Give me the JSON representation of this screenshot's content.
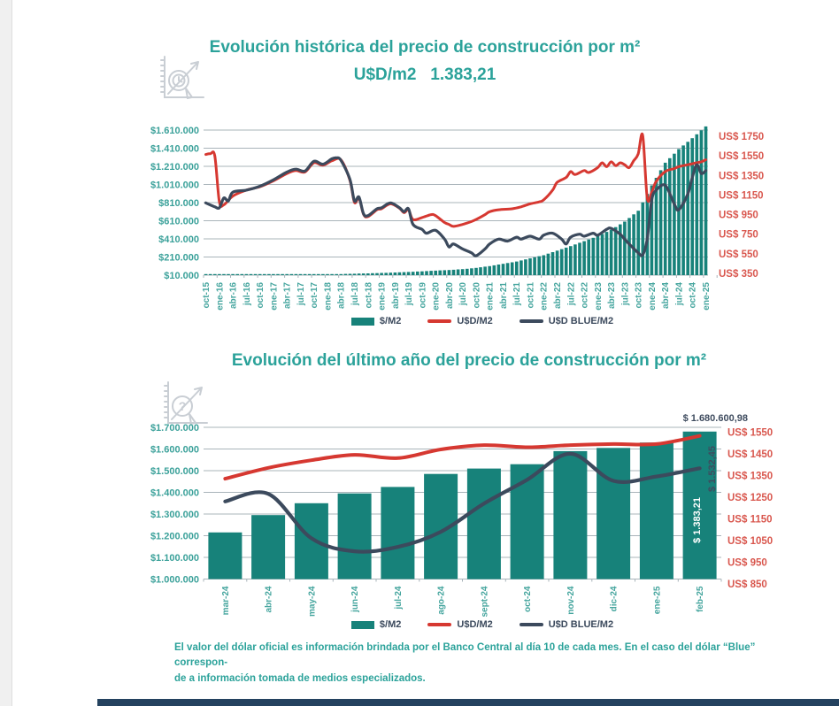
{
  "colors": {
    "bar_teal": "#17827a",
    "title_teal": "#2ba29a",
    "axis_teal": "#3ba19a",
    "tick_teal": "#45a59e",
    "red_line": "#d63831",
    "red_axis_text": "#d9574e",
    "navy_line": "#3c4a5d",
    "grid": "#a9b4ba",
    "annotation_navy": "#3f4c5f",
    "annotation_white": "#ffffff",
    "bottom_bar": "#24425f"
  },
  "footnote": {
    "line1": "El valor del dólar oficial es información brindada por el Banco Central al día 10 de cada mes. En el caso del dólar “Blue” correspon-",
    "line2": "de a información tomada de medios especializados."
  },
  "chart_data": [
    {
      "type": "bar+line",
      "title": "Evolución histórica del precio de construcción por m²",
      "subtitle": "U$D/m2   1.383,21",
      "legend": [
        "$/M2",
        "U$D/M2",
        "U$D BLUE/M2"
      ],
      "x_tick_labels": [
        "oct-15",
        "ene-16",
        "abr-16",
        "jul-16",
        "oct-16",
        "ene-17",
        "abr-17",
        "jul-17",
        "oct-17",
        "ene-18",
        "abr-18",
        "jul-18",
        "oct-18",
        "ene-19",
        "abr-19",
        "jul-19",
        "oct-19",
        "ene-20",
        "abr-20",
        "jul-20",
        "oct-20",
        "ene-21",
        "abr-21",
        "jul-21",
        "oct-21",
        "ene-22",
        "abr-22",
        "jul-22",
        "oct-22",
        "ene-23",
        "abr-23",
        "jul-23",
        "oct-23",
        "ene-24",
        "abr-24",
        "jul-24",
        "oct-24",
        "ene-25"
      ],
      "months_total": 112,
      "left_axis": {
        "labels": [
          "$1.610.000",
          "$1.410.000",
          "$1.210.000",
          "$1.010.000",
          "$810.000",
          "$610.000",
          "$410.000",
          "$210.000",
          "$10.000"
        ],
        "min": 10000,
        "max": 1610000
      },
      "right_axis": {
        "labels": [
          "US$ 1750",
          "US$ 1550",
          "US$ 1350",
          "US$ 1150",
          "US$ 950",
          "US$ 750",
          "US$ 550",
          "US$ 350"
        ],
        "values": [
          1750,
          1550,
          1350,
          1150,
          950,
          750,
          550,
          350
        ],
        "plot_top_value": 1814,
        "plot_bottom_value": 332
      },
      "series": {
        "bars": {
          "name": "$/M2",
          "quarterly_anchors": [
            [
              0,
              9000
            ],
            [
              3,
              10000
            ],
            [
              6,
              11000
            ],
            [
              9,
              12000
            ],
            [
              12,
              13000
            ],
            [
              15,
              14500
            ],
            [
              18,
              15500
            ],
            [
              21,
              17000
            ],
            [
              24,
              18500
            ],
            [
              27,
              20000
            ],
            [
              30,
              22000
            ],
            [
              33,
              26000
            ],
            [
              36,
              30000
            ],
            [
              39,
              34000
            ],
            [
              42,
              39000
            ],
            [
              45,
              45000
            ],
            [
              48,
              52000
            ],
            [
              51,
              60000
            ],
            [
              54,
              67000
            ],
            [
              57,
              76000
            ],
            [
              60,
              90000
            ],
            [
              63,
              110000
            ],
            [
              66,
              135000
            ],
            [
              69,
              160000
            ],
            [
              72,
              195000
            ],
            [
              75,
              230000
            ],
            [
              78,
              280000
            ],
            [
              81,
              330000
            ],
            [
              84,
              385000
            ],
            [
              87,
              440000
            ],
            [
              90,
              510000
            ],
            [
              93,
              600000
            ],
            [
              96,
              720000
            ],
            [
              99,
              1000000
            ],
            [
              102,
              1250000
            ],
            [
              105,
              1400000
            ],
            [
              108,
              1520000
            ],
            [
              111,
              1650000
            ]
          ]
        },
        "usd": {
          "name": "U$D/M2",
          "points": [
            [
              0,
              1565
            ],
            [
              1,
              1572
            ],
            [
              2,
              1550
            ],
            [
              3,
              1085
            ],
            [
              4,
              1050
            ],
            [
              6,
              1140
            ],
            [
              9,
              1200
            ],
            [
              12,
              1235
            ],
            [
              15,
              1295
            ],
            [
              18,
              1370
            ],
            [
              20,
              1400
            ],
            [
              22,
              1385
            ],
            [
              24,
              1480
            ],
            [
              26,
              1455
            ],
            [
              28,
              1500
            ],
            [
              30,
              1510
            ],
            [
              32,
              1300
            ],
            [
              33,
              1075
            ],
            [
              34,
              1120
            ],
            [
              35,
              955
            ],
            [
              36,
              930
            ],
            [
              38,
              1000
            ],
            [
              39,
              1010
            ],
            [
              41,
              1060
            ],
            [
              43,
              1015
            ],
            [
              44,
              970
            ],
            [
              45,
              1000
            ],
            [
              46,
              900
            ],
            [
              48,
              920
            ],
            [
              50,
              950
            ],
            [
              51,
              940
            ],
            [
              53,
              870
            ],
            [
              54,
              850
            ],
            [
              55,
              830
            ],
            [
              57,
              850
            ],
            [
              59,
              880
            ],
            [
              60,
              900
            ],
            [
              62,
              950
            ],
            [
              63,
              980
            ],
            [
              65,
              1000
            ],
            [
              68,
              1010
            ],
            [
              70,
              1030
            ],
            [
              72,
              1060
            ],
            [
              74,
              1080
            ],
            [
              75,
              1100
            ],
            [
              77,
              1200
            ],
            [
              78,
              1280
            ],
            [
              80,
              1330
            ],
            [
              81,
              1390
            ],
            [
              82,
              1360
            ],
            [
              84,
              1400
            ],
            [
              85,
              1380
            ],
            [
              87,
              1430
            ],
            [
              88,
              1480
            ],
            [
              89,
              1440
            ],
            [
              90,
              1490
            ],
            [
              91,
              1450
            ],
            [
              92,
              1480
            ],
            [
              93,
              1460
            ],
            [
              94,
              1430
            ],
            [
              95,
              1500
            ],
            [
              96,
              1570
            ],
            [
              97,
              1760
            ],
            [
              98,
              1120
            ],
            [
              99,
              1180
            ],
            [
              100,
              1290
            ],
            [
              102,
              1390
            ],
            [
              104,
              1420
            ],
            [
              105,
              1440
            ],
            [
              107,
              1460
            ],
            [
              108,
              1470
            ],
            [
              109,
              1480
            ],
            [
              110,
              1490
            ],
            [
              111,
              1510
            ]
          ]
        },
        "blue": {
          "name": "U$D BLUE/M2",
          "points": [
            [
              0,
              1070
            ],
            [
              2,
              1030
            ],
            [
              3,
              1020
            ],
            [
              4,
              1120
            ],
            [
              5,
              1090
            ],
            [
              6,
              1180
            ],
            [
              9,
              1200
            ],
            [
              12,
              1240
            ],
            [
              15,
              1305
            ],
            [
              18,
              1385
            ],
            [
              20,
              1415
            ],
            [
              22,
              1395
            ],
            [
              24,
              1495
            ],
            [
              26,
              1465
            ],
            [
              28,
              1520
            ],
            [
              29,
              1530
            ],
            [
              30,
              1505
            ],
            [
              32,
              1310
            ],
            [
              33,
              1090
            ],
            [
              34,
              1130
            ],
            [
              35,
              960
            ],
            [
              36,
              940
            ],
            [
              38,
              1010
            ],
            [
              39,
              1020
            ],
            [
              41,
              1070
            ],
            [
              43,
              1020
            ],
            [
              44,
              980
            ],
            [
              45,
              1010
            ],
            [
              46,
              850
            ],
            [
              48,
              800
            ],
            [
              49,
              760
            ],
            [
              51,
              790
            ],
            [
              53,
              700
            ],
            [
              54,
              620
            ],
            [
              55,
              650
            ],
            [
              57,
              600
            ],
            [
              59,
              560
            ],
            [
              60,
              530
            ],
            [
              62,
              600
            ],
            [
              63,
              650
            ],
            [
              65,
              700
            ],
            [
              67,
              680
            ],
            [
              69,
              720
            ],
            [
              70,
              700
            ],
            [
              72,
              730
            ],
            [
              74,
              700
            ],
            [
              75,
              740
            ],
            [
              77,
              760
            ],
            [
              79,
              700
            ],
            [
              80,
              650
            ],
            [
              81,
              720
            ],
            [
              83,
              750
            ],
            [
              84,
              730
            ],
            [
              86,
              760
            ],
            [
              87,
              740
            ],
            [
              89,
              800
            ],
            [
              90,
              810
            ],
            [
              92,
              750
            ],
            [
              93,
              700
            ],
            [
              94,
              650
            ],
            [
              96,
              560
            ],
            [
              97,
              540
            ],
            [
              98,
              700
            ],
            [
              99,
              1100
            ],
            [
              100,
              1200
            ],
            [
              102,
              1250
            ],
            [
              104,
              1060
            ],
            [
              105,
              1000
            ],
            [
              107,
              1160
            ],
            [
              108,
              1330
            ],
            [
              109,
              1460
            ],
            [
              110,
              1370
            ],
            [
              111,
              1400
            ]
          ]
        }
      }
    },
    {
      "type": "bar+line",
      "title": "Evolución del último año del precio de construcción por m²",
      "legend": [
        "$/M2",
        "U$D/M2",
        "U$D BLUE/M2"
      ],
      "categories": [
        "mar-24",
        "abr-24",
        "may-24",
        "jun-24",
        "jul-24",
        "ago-24",
        "sept-24",
        "oct-24",
        "nov-24",
        "dic-24",
        "ene-25",
        "feb-25"
      ],
      "left_axis": {
        "labels": [
          "$1.700.000",
          "$1.600.000",
          "$1.500.000",
          "$1.400.000",
          "$1.300.000",
          "$1.200.000",
          "$1.100.000",
          "$1.000.000"
        ],
        "min": 1000000,
        "max": 1700000
      },
      "right_axis": {
        "labels": [
          "US$ 1550",
          "US$ 1450",
          "US$ 1350",
          "US$ 1250",
          "US$ 1150",
          "US$ 1050",
          "US$ 950",
          "US$ 850"
        ],
        "values": [
          1550,
          1450,
          1350,
          1250,
          1150,
          1050,
          950,
          850
        ],
        "plot_top_value": 1572
      },
      "series": {
        "bars": {
          "name": "$/M2",
          "values": [
            1215000,
            1295000,
            1350000,
            1395000,
            1425000,
            1485000,
            1510000,
            1530000,
            1590000,
            1605000,
            1630000,
            1680600.98
          ]
        },
        "usd": {
          "name": "U$D/M2",
          "values": [
            1335,
            1385,
            1420,
            1445,
            1430,
            1470,
            1490,
            1480,
            1490,
            1495,
            1495,
            1532.45
          ]
        },
        "blue": {
          "name": "U$D BLUE/M2",
          "values": [
            1230,
            1265,
            1060,
            1000,
            1020,
            1090,
            1220,
            1330,
            1450,
            1325,
            1345,
            1383.21
          ]
        }
      },
      "annotations": {
        "bar_top": "$ 1.680.600,98",
        "usd_line": "$ 1.532,45",
        "blue_line": "$ 1.383,21"
      }
    }
  ]
}
